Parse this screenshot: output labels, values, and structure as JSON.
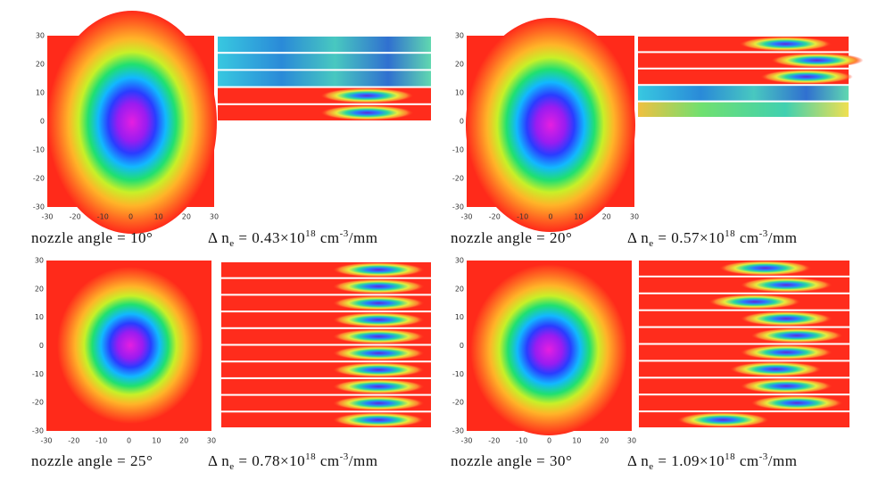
{
  "ticks": [
    "-30",
    "-20",
    "-10",
    "0",
    "10",
    "20",
    "30"
  ],
  "panels": [
    {
      "caption": "nozzle angle = 10°",
      "delta_symbol": "Δ n",
      "delta_sub": "e",
      "value_text": " = 0.43×10",
      "exponent": "18",
      "unit": " cm",
      "unit_exponent": "-3",
      "unit_suffix": "/mm"
    },
    {
      "caption": "nozzle angle = 20°",
      "delta_symbol": "Δ n",
      "delta_sub": "e",
      "value_text": " = 0.57×10",
      "exponent": "18",
      "unit": " cm",
      "unit_exponent": "-3",
      "unit_suffix": "/mm"
    },
    {
      "caption": "nozzle angle = 25°",
      "delta_symbol": "Δ n",
      "delta_sub": "e",
      "value_text": " = 0.78×10",
      "exponent": "18",
      "unit": " cm",
      "unit_exponent": "-3",
      "unit_suffix": "/mm"
    },
    {
      "caption": "nozzle angle = 30°",
      "delta_symbol": "Δ n",
      "delta_sub": "e",
      "value_text": " = 1.09×10",
      "exponent": "18",
      "unit": " cm",
      "unit_exponent": "-3",
      "unit_suffix": "/mm"
    }
  ]
}
